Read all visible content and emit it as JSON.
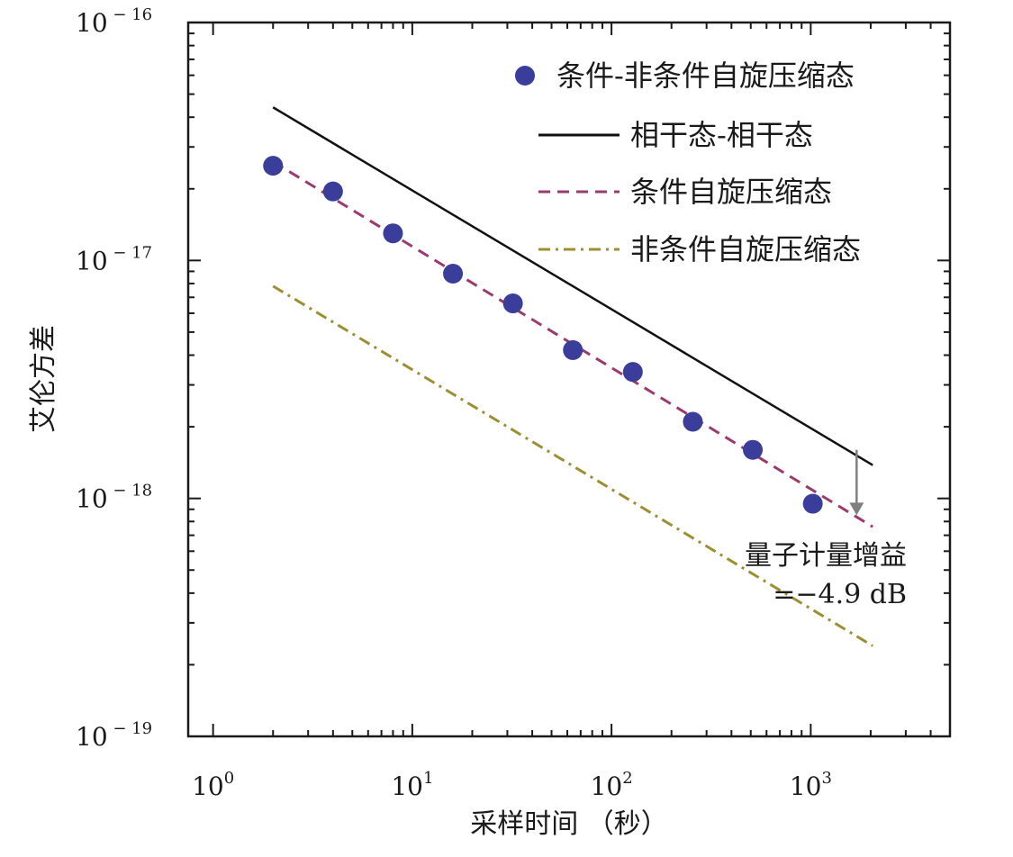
{
  "chart_data": {
    "type": "line",
    "title": "",
    "xlabel": "采样时间 （秒）",
    "ylabel": "艾伦方差",
    "x_scale": "log",
    "y_scale": "log",
    "xlim": [
      0.75,
      5000
    ],
    "ylim": [
      1e-19,
      1e-16
    ],
    "x_ticks": [
      {
        "value": 1,
        "base": "10",
        "exp": "0"
      },
      {
        "value": 10,
        "base": "10",
        "exp": "1"
      },
      {
        "value": 100,
        "base": "10",
        "exp": "2"
      },
      {
        "value": 1000,
        "base": "10",
        "exp": "3"
      }
    ],
    "y_ticks": [
      {
        "value": 1e-16,
        "base": "10",
        "exp": "− 16"
      },
      {
        "value": 1e-17,
        "base": "10",
        "exp": "− 17"
      },
      {
        "value": 1e-18,
        "base": "10",
        "exp": "− 18"
      },
      {
        "value": 1e-19,
        "base": "10",
        "exp": "− 19"
      }
    ],
    "series": [
      {
        "name": "条件-非条件自旋压缩态",
        "kind": "scatter",
        "color": "#3b3d9a",
        "x": [
          2,
          4,
          8,
          16,
          32,
          64,
          128,
          256,
          512,
          1024
        ],
        "y": [
          2.5e-17,
          1.95e-17,
          1.3e-17,
          8.8e-18,
          6.6e-18,
          4.2e-18,
          3.4e-18,
          2.1e-18,
          1.6e-18,
          9.5e-19
        ]
      },
      {
        "name": "相干态-相干态",
        "kind": "line",
        "dash": "solid",
        "color": "#111111",
        "x": [
          2,
          2048
        ],
        "y": [
          4.4e-17,
          1.38e-18
        ]
      },
      {
        "name": "条件自旋压缩态",
        "kind": "line",
        "dash": "dashed",
        "color": "#9b3a6e",
        "x": [
          2,
          2048
        ],
        "y": [
          2.6e-17,
          7.6e-19
        ]
      },
      {
        "name": "非条件自旋压缩态",
        "kind": "line",
        "dash": "dashdot",
        "color": "#9c8f32",
        "x": [
          2,
          2048
        ],
        "y": [
          7.8e-18,
          2.4e-19
        ]
      }
    ],
    "annotation": {
      "line1": "量子计量增益",
      "line2": "=−4.9 dB",
      "arrow_x": 1700,
      "arrow_from_y": 1.6e-18,
      "arrow_to_y": 8.5e-19,
      "color": "#808080"
    },
    "legend_position": "top-right"
  }
}
